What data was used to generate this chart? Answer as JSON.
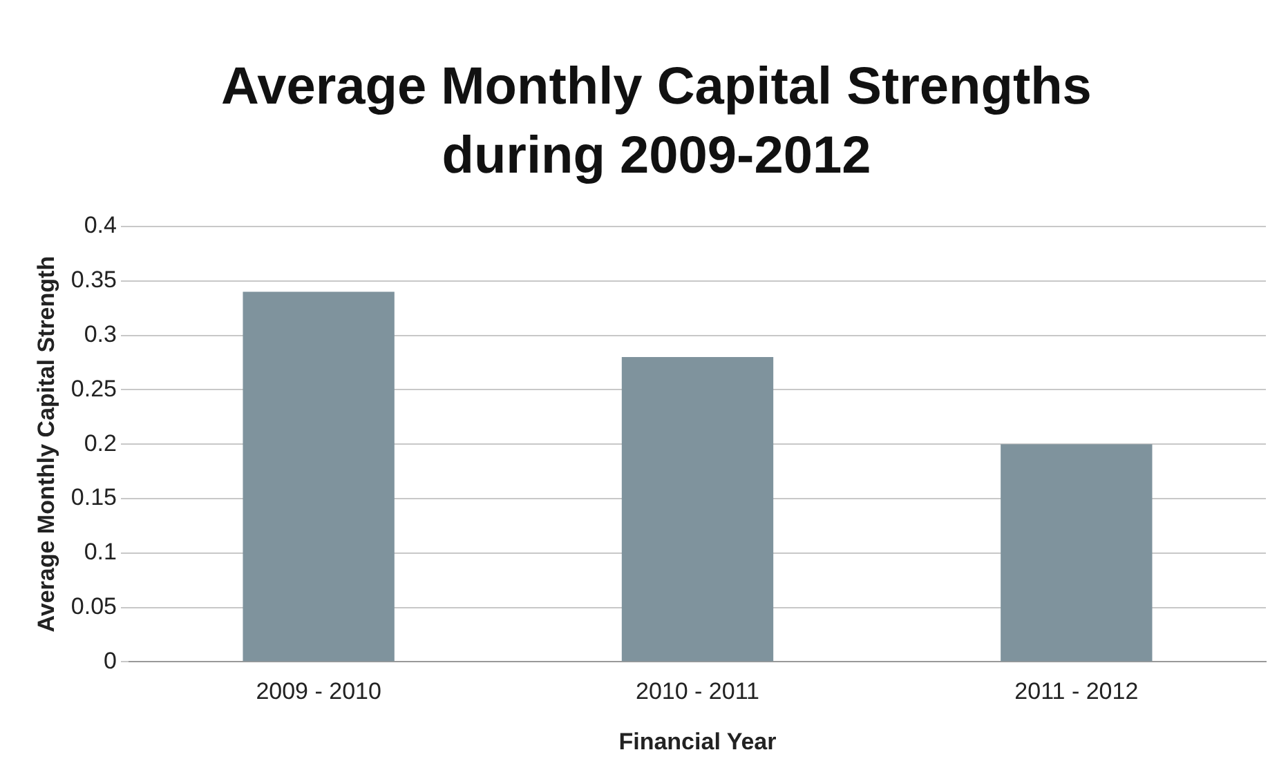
{
  "chart_data": {
    "type": "bar",
    "title": "Average Monthly Capital Strengths during 2009-2012",
    "xlabel": "Financial Year",
    "ylabel": "Average Monthly Capital Strength",
    "categories": [
      "2009 - 2010",
      "2010 - 2011",
      "2011 - 2012"
    ],
    "values": [
      0.34,
      0.28,
      0.2
    ],
    "color": "#7f939d",
    "ylim": [
      0,
      0.4
    ],
    "yticks": [
      0,
      0.05,
      0.1,
      0.15,
      0.2,
      0.25,
      0.3,
      0.35,
      0.4
    ],
    "grid": "y",
    "legend": false
  }
}
